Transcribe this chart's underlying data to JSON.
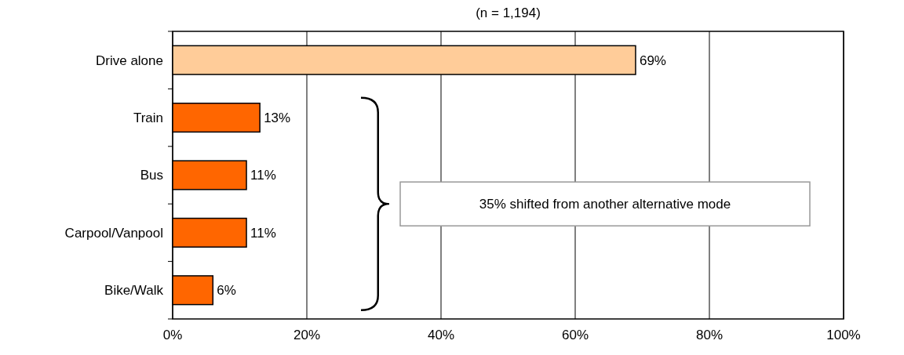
{
  "chart_data": {
    "type": "bar",
    "orientation": "horizontal",
    "title": "(n = 1,194)",
    "categories": [
      "Drive alone",
      "Train",
      "Bus",
      "Carpool/Vanpool",
      "Bike/Walk"
    ],
    "values": [
      69,
      13,
      11,
      11,
      6
    ],
    "colors": [
      "#ffcc99",
      "#ff6600",
      "#ff6600",
      "#ff6600",
      "#ff6600"
    ],
    "value_labels": [
      "69%",
      "13%",
      "11%",
      "11%",
      "6%"
    ],
    "xlim": [
      0,
      100
    ],
    "xticks": [
      {
        "value": 0,
        "label": "0%"
      },
      {
        "value": 20,
        "label": "20%"
      },
      {
        "value": 40,
        "label": "40%"
      },
      {
        "value": 60,
        "label": "60%"
      },
      {
        "value": 80,
        "label": "80%"
      },
      {
        "value": 100,
        "label": "100%"
      }
    ],
    "grid": "x",
    "annotations": [
      "35% shifted from another alternative mode"
    ]
  }
}
